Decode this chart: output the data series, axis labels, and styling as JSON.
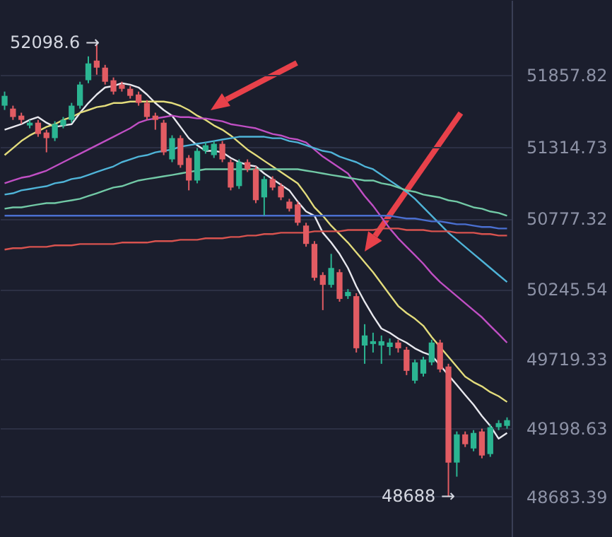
{
  "chart_data": {
    "type": "candlestick",
    "categories": [
      null,
      null,
      null,
      null,
      null,
      null,
      null,
      null,
      null,
      null,
      null,
      null,
      null,
      null,
      null,
      null,
      null,
      null,
      null,
      null,
      null,
      null,
      null,
      null,
      null,
      null,
      null,
      null,
      null,
      null,
      null,
      null,
      null,
      null,
      null,
      null,
      null,
      null,
      null,
      null,
      null,
      null,
      null,
      null,
      null,
      null,
      null,
      null,
      null,
      null,
      null,
      null,
      null,
      null,
      null,
      null,
      null,
      null,
      null,
      null,
      null
    ],
    "ohlc": [
      [
        51625,
        51731,
        51593,
        51699
      ],
      [
        51603,
        51625,
        51518,
        51540
      ],
      [
        51550,
        51572,
        51487,
        51518
      ],
      [
        51476,
        51518,
        51455,
        51497
      ],
      [
        51497,
        51518,
        51391,
        51412
      ],
      [
        51423,
        51444,
        51274,
        51381
      ],
      [
        51381,
        51508,
        51359,
        51487
      ],
      [
        51476,
        51540,
        51455,
        51518
      ],
      [
        51518,
        51646,
        51497,
        51625
      ],
      [
        51625,
        51805,
        51603,
        51784
      ],
      [
        51816,
        51996,
        51794,
        51943
      ],
      [
        51964,
        52098.6,
        51858,
        51911
      ],
      [
        51911,
        51932,
        51784,
        51805
      ],
      [
        51816,
        51837,
        51709,
        51731
      ],
      [
        51784,
        51805,
        51731,
        51752
      ],
      [
        51752,
        51773,
        51678,
        51699
      ],
      [
        51709,
        51731,
        51625,
        51646
      ],
      [
        51646,
        51667,
        51518,
        51540
      ],
      [
        51550,
        51572,
        51444,
        51518
      ],
      [
        51497,
        51518,
        51253,
        51274
      ],
      [
        51221,
        51402,
        51200,
        51381
      ],
      [
        51381,
        51402,
        51158,
        51179
      ],
      [
        51232,
        51253,
        50988,
        51062
      ],
      [
        51062,
        51306,
        51041,
        51285
      ],
      [
        51285,
        51349,
        51264,
        51327
      ],
      [
        51253,
        51359,
        51232,
        51338
      ],
      [
        51338,
        51359,
        51200,
        51221
      ],
      [
        51200,
        51221,
        50988,
        51009
      ],
      [
        51020,
        51221,
        50999,
        51200
      ],
      [
        51200,
        51221,
        51126,
        51147
      ],
      [
        51147,
        51168,
        50892,
        50914
      ],
      [
        50935,
        51094,
        50797,
        51073
      ],
      [
        51073,
        51094,
        50988,
        51009
      ],
      [
        51020,
        51041,
        50914,
        50935
      ],
      [
        50903,
        50924,
        50829,
        50850
      ],
      [
        50882,
        50903,
        50723,
        50744
      ],
      [
        50723,
        50744,
        50564,
        50585
      ],
      [
        50585,
        50606,
        50309,
        50330
      ],
      [
        50351,
        50372,
        50087,
        50277
      ],
      [
        50277,
        50510,
        50256,
        50404
      ],
      [
        50372,
        50394,
        50150,
        50171
      ],
      [
        50192,
        50245,
        50171,
        50224
      ],
      [
        50192,
        50214,
        49768,
        49800
      ],
      [
        49821,
        49981,
        49683,
        49896
      ],
      [
        49832,
        49917,
        49768,
        49853
      ],
      [
        49821,
        49896,
        49683,
        49853
      ],
      [
        49810,
        49874,
        49747,
        49843
      ],
      [
        49843,
        49864,
        49768,
        49800
      ],
      [
        49789,
        49810,
        49598,
        49630
      ],
      [
        49556,
        49715,
        49535,
        49694
      ],
      [
        49609,
        49736,
        49587,
        49715
      ],
      [
        49694,
        49864,
        49672,
        49843
      ],
      [
        49843,
        49864,
        49619,
        49641
      ],
      [
        49662,
        49683,
        48688,
        48940
      ],
      [
        48940,
        49174,
        48834,
        49152
      ],
      [
        49152,
        49174,
        49057,
        49078
      ],
      [
        49046,
        49184,
        49025,
        49163
      ],
      [
        49174,
        49195,
        48972,
        48993
      ],
      [
        49004,
        49227,
        48983,
        49206
      ],
      [
        49206,
        49259,
        49184,
        49237
      ],
      [
        49216,
        49280,
        49195,
        49259
      ]
    ],
    "colors": [
      "#2bb592",
      "#e25c63",
      "#e25c63",
      "#2bb592",
      "#e25c63",
      "#e25c63",
      "#2bb592",
      "#2bb592",
      "#2bb592",
      "#2bb592",
      "#2bb592",
      "#e25c63",
      "#e25c63",
      "#e25c63",
      "#e25c63",
      "#e25c63",
      "#e25c63",
      "#e25c63",
      "#e25c63",
      "#e25c63",
      "#2bb592",
      "#e25c63",
      "#e25c63",
      "#2bb592",
      "#2bb592",
      "#2bb592",
      "#e25c63",
      "#e25c63",
      "#2bb592",
      "#e25c63",
      "#e25c63",
      "#2bb592",
      "#e25c63",
      "#e25c63",
      "#e25c63",
      "#e25c63",
      "#e25c63",
      "#e25c63",
      "#e25c63",
      "#2bb592",
      "#e25c63",
      "#2bb592",
      "#e25c63",
      "#2bb592",
      "#2bb592",
      "#2bb592",
      "#2bb592",
      "#e25c63",
      "#e25c63",
      "#2bb592",
      "#2bb592",
      "#2bb592",
      "#e25c63",
      "#e25c63",
      "#2bb592",
      "#e25c63",
      "#2bb592",
      "#e25c63",
      "#2bb592",
      "#2bb592",
      "#2bb592"
    ],
    "series": [
      {
        "type": "line",
        "color": "#e8e8ee",
        "values": [
          51444,
          51465,
          51486,
          51518,
          51539,
          51497,
          51465,
          51476,
          51486,
          51571,
          51645,
          51709,
          51762,
          51773,
          51794,
          51783,
          51762,
          51709,
          51645,
          51592,
          51550,
          51465,
          51380,
          51327,
          51285,
          51285,
          51274,
          51232,
          51200,
          51179,
          51168,
          51115,
          51073,
          51030,
          50988,
          50903,
          50829,
          50797,
          50669,
          50595,
          50510,
          50404,
          50266,
          50149,
          50043,
          49948,
          49916,
          49874,
          49842,
          49799,
          49768,
          49746,
          49672,
          49598,
          49524,
          49449,
          49375,
          49290,
          49216,
          49120,
          49163
        ]
      },
      {
        "type": "line",
        "color": "#e3dc7c",
        "values": [
          51253,
          51306,
          51359,
          51401,
          51433,
          51465,
          51486,
          51518,
          51539,
          51571,
          51592,
          51614,
          51624,
          51645,
          51645,
          51656,
          51656,
          51656,
          51656,
          51656,
          51645,
          51624,
          51592,
          51550,
          51518,
          51476,
          51444,
          51401,
          51348,
          51295,
          51253,
          51210,
          51168,
          51126,
          51083,
          51041,
          50956,
          50860,
          50797,
          50722,
          50659,
          50595,
          50521,
          50447,
          50372,
          50287,
          50202,
          50118,
          50065,
          50022,
          49969,
          49884,
          49810,
          49736,
          49661,
          49587,
          49545,
          49513,
          49470,
          49439,
          49396
        ]
      },
      {
        "type": "line",
        "color": "#c04fc4",
        "values": [
          51041,
          51062,
          51083,
          51094,
          51115,
          51136,
          51168,
          51200,
          51232,
          51263,
          51295,
          51327,
          51359,
          51391,
          51423,
          51455,
          51497,
          51518,
          51529,
          51539,
          51550,
          51539,
          51539,
          51529,
          51529,
          51518,
          51508,
          51486,
          51476,
          51465,
          51455,
          51433,
          51412,
          51401,
          51380,
          51370,
          51348,
          51295,
          51242,
          51200,
          51157,
          51115,
          51030,
          50945,
          50871,
          50786,
          50701,
          50627,
          50563,
          50500,
          50436,
          50362,
          50298,
          50245,
          50192,
          50139,
          50086,
          50033,
          49969,
          49906,
          49842
        ]
      },
      {
        "type": "line",
        "color": "#4fb4d8",
        "values": [
          50956,
          50966,
          50988,
          50998,
          51009,
          51019,
          51041,
          51051,
          51073,
          51083,
          51104,
          51126,
          51147,
          51168,
          51200,
          51221,
          51242,
          51253,
          51274,
          51285,
          51295,
          51317,
          51327,
          51338,
          51348,
          51359,
          51370,
          51380,
          51391,
          51391,
          51391,
          51391,
          51380,
          51380,
          51359,
          51348,
          51327,
          51306,
          51285,
          51274,
          51242,
          51221,
          51200,
          51168,
          51147,
          51104,
          51062,
          51019,
          50977,
          50924,
          50860,
          50797,
          50733,
          50669,
          50616,
          50563,
          50510,
          50457,
          50404,
          50351,
          50298
        ]
      },
      {
        "type": "line",
        "color": "#72c9a6",
        "values": [
          50850,
          50860,
          50860,
          50871,
          50882,
          50892,
          50892,
          50903,
          50913,
          50924,
          50945,
          50966,
          50988,
          51009,
          51019,
          51041,
          51062,
          51073,
          51083,
          51094,
          51104,
          51115,
          51126,
          51136,
          51147,
          51147,
          51147,
          51147,
          51147,
          51147,
          51147,
          51147,
          51147,
          51147,
          51147,
          51147,
          51136,
          51126,
          51115,
          51104,
          51094,
          51083,
          51073,
          51062,
          51062,
          51041,
          51030,
          51009,
          50988,
          50977,
          50956,
          50945,
          50934,
          50913,
          50903,
          50882,
          50860,
          50850,
          50829,
          50818,
          50797
        ]
      },
      {
        "type": "line",
        "color": "#4a6fd0",
        "values": [
          50797,
          50797,
          50797,
          50797,
          50797,
          50797,
          50797,
          50797,
          50797,
          50797,
          50797,
          50797,
          50797,
          50797,
          50797,
          50797,
          50797,
          50797,
          50797,
          50797,
          50797,
          50797,
          50797,
          50797,
          50797,
          50797,
          50797,
          50797,
          50797,
          50797,
          50797,
          50797,
          50797,
          50797,
          50797,
          50797,
          50797,
          50797,
          50797,
          50797,
          50797,
          50797,
          50797,
          50797,
          50797,
          50797,
          50797,
          50786,
          50776,
          50776,
          50765,
          50754,
          50754,
          50744,
          50733,
          50733,
          50722,
          50712,
          50712,
          50701,
          50701
        ]
      },
      {
        "type": "line",
        "color": "#d9534f",
        "values": [
          50542,
          50553,
          50553,
          50563,
          50563,
          50563,
          50574,
          50574,
          50574,
          50584,
          50584,
          50584,
          50584,
          50584,
          50595,
          50595,
          50595,
          50595,
          50606,
          50606,
          50606,
          50616,
          50616,
          50616,
          50627,
          50627,
          50627,
          50637,
          50637,
          50648,
          50648,
          50659,
          50659,
          50669,
          50669,
          50669,
          50669,
          50680,
          50680,
          50680,
          50680,
          50690,
          50690,
          50690,
          50690,
          50701,
          50701,
          50701,
          50690,
          50690,
          50690,
          50680,
          50680,
          50680,
          50669,
          50669,
          50669,
          50659,
          50659,
          50648,
          50648
        ]
      }
    ],
    "ylim": [
      48380,
      52420
    ],
    "yticks": [
      48683.39,
      49198.63,
      49719.33,
      50245.54,
      50777.32,
      51314.73,
      51857.82
    ],
    "grid": "y",
    "tick_labels": "y",
    "annotations": [
      "52098.6 →",
      "48688 →"
    ]
  }
}
